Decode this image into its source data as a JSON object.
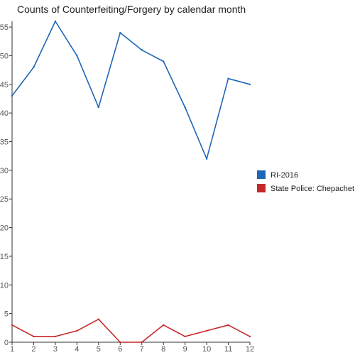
{
  "chart_data": {
    "type": "line",
    "title": "Counts of Counterfeiting/Forgery by calendar month",
    "xlabel": "",
    "ylabel": "",
    "x": [
      1,
      2,
      3,
      4,
      5,
      6,
      7,
      8,
      9,
      10,
      11,
      12
    ],
    "xlim": [
      1,
      12
    ],
    "ylim": [
      0,
      56
    ],
    "yticks": [
      0,
      5,
      10,
      15,
      20,
      25,
      30,
      35,
      40,
      45,
      50,
      55
    ],
    "grid": false,
    "legend_position": "right",
    "series": [
      {
        "name": "RI-2016",
        "color": "#1f66b8",
        "values": [
          43,
          48,
          56,
          50,
          41,
          54,
          51,
          49,
          41,
          32,
          46,
          45
        ]
      },
      {
        "name": "State Police: Chepachet",
        "color": "#c62828",
        "values": [
          3,
          1,
          1,
          2,
          4,
          0,
          0,
          3,
          1,
          2,
          3,
          1
        ]
      }
    ]
  }
}
